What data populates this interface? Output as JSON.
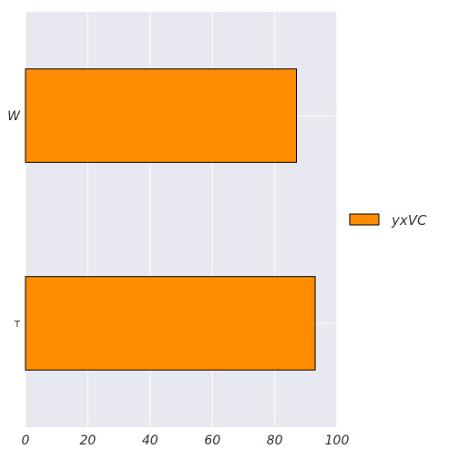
{
  "chart_data": {
    "type": "bar",
    "orientation": "horizontal",
    "categories": [
      "W",
      "T"
    ],
    "series": [
      {
        "name": "yxVC",
        "values": [
          87,
          93
        ]
      }
    ],
    "xlim": [
      0,
      100
    ],
    "x_ticks": [
      "0",
      "20",
      "40",
      "60",
      "80",
      "100"
    ],
    "grid": true,
    "legend_position": "right",
    "colors": {
      "bar": "#ff8c00",
      "bar_edge": "#000000",
      "plot_background": "#e8e8f0",
      "grid": "#ffffff"
    }
  }
}
